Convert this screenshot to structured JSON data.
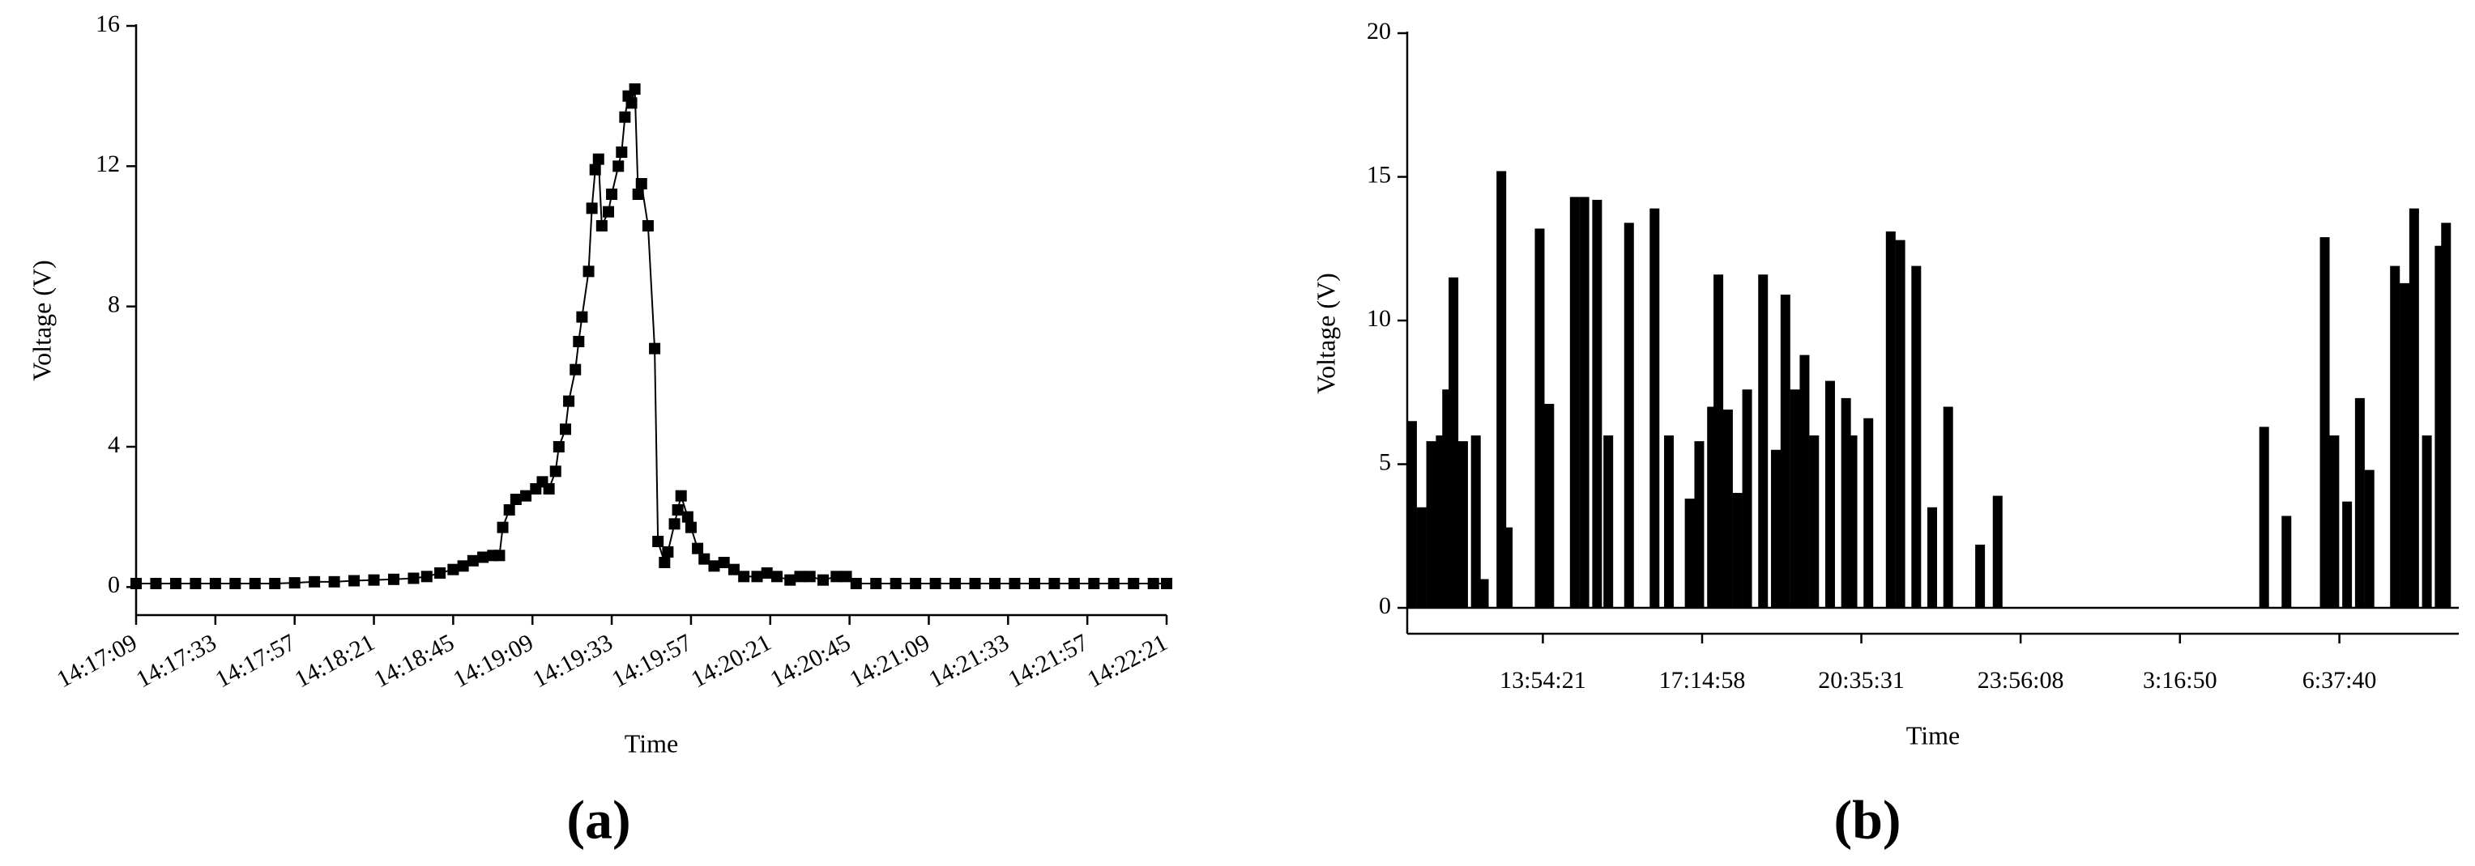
{
  "chart_data": [
    {
      "type": "line",
      "panel_label": "(a)",
      "xlabel": "Time",
      "ylabel": "Voltage (V)",
      "color": "#000000",
      "marker": "square",
      "x": [
        51429,
        51435,
        51441,
        51447,
        51453,
        51459,
        51465,
        51471,
        51477,
        51483,
        51489,
        51495,
        51501,
        51507,
        51513,
        51517,
        51521,
        51525,
        51528,
        51531,
        51534,
        51537,
        51539,
        51540,
        51542,
        51544,
        51547,
        51550,
        51552,
        51554,
        51556,
        51557,
        51559,
        51560,
        51562,
        51563,
        51564,
        51566,
        51567,
        51568,
        51569,
        51570,
        51572,
        51573,
        51575,
        51576,
        51577,
        51578,
        51579,
        51580,
        51581,
        51582,
        51584,
        51586,
        51587,
        51589,
        51590,
        51592,
        51593,
        51594,
        51596,
        51597,
        51599,
        51601,
        51604,
        51607,
        51610,
        51613,
        51617,
        51620,
        51623,
        51627,
        51630,
        51633,
        51637,
        51641,
        51644,
        51647,
        51653,
        51659,
        51665,
        51671,
        51677,
        51683,
        51689,
        51695,
        51701,
        51707,
        51713,
        51719,
        51725,
        51731,
        51737,
        51741
      ],
      "values": [
        0.1,
        0.1,
        0.1,
        0.1,
        0.1,
        0.1,
        0.1,
        0.1,
        0.12,
        0.15,
        0.15,
        0.18,
        0.2,
        0.22,
        0.25,
        0.3,
        0.4,
        0.5,
        0.6,
        0.75,
        0.85,
        0.9,
        0.9,
        1.7,
        2.2,
        2.5,
        2.6,
        2.8,
        3.0,
        2.8,
        3.3,
        4.0,
        4.5,
        5.3,
        6.2,
        7.0,
        7.7,
        9.0,
        10.8,
        11.9,
        12.2,
        10.3,
        10.7,
        11.2,
        12.0,
        12.4,
        13.4,
        14.0,
        13.8,
        14.2,
        11.2,
        11.5,
        10.3,
        6.8,
        1.3,
        0.7,
        1.0,
        1.8,
        2.2,
        2.6,
        2.0,
        1.7,
        1.1,
        0.8,
        0.6,
        0.7,
        0.5,
        0.3,
        0.3,
        0.4,
        0.3,
        0.2,
        0.3,
        0.3,
        0.2,
        0.3,
        0.3,
        0.1,
        0.1,
        0.1,
        0.1,
        0.1,
        0.1,
        0.1,
        0.1,
        0.1,
        0.1,
        0.1,
        0.1,
        0.1,
        0.1,
        0.1,
        0.1,
        0.1
      ],
      "xlim": [
        51429,
        51741
      ],
      "xticks": [
        {
          "value": 51429,
          "label": "14:17:09"
        },
        {
          "value": 51453,
          "label": "14:17:33"
        },
        {
          "value": 51477,
          "label": "14:17:57"
        },
        {
          "value": 51501,
          "label": "14:18:21"
        },
        {
          "value": 51525,
          "label": "14:18:45"
        },
        {
          "value": 51549,
          "label": "14:19:09"
        },
        {
          "value": 51573,
          "label": "14:19:33"
        },
        {
          "value": 51597,
          "label": "14:19:57"
        },
        {
          "value": 51621,
          "label": "14:20:21"
        },
        {
          "value": 51645,
          "label": "14:20:45"
        },
        {
          "value": 51669,
          "label": "14:21:09"
        },
        {
          "value": 51693,
          "label": "14:21:33"
        },
        {
          "value": 51717,
          "label": "14:21:57"
        },
        {
          "value": 51741,
          "label": "14:22:21"
        }
      ],
      "ylim": [
        -0.8,
        16
      ],
      "yticks": [
        0,
        4,
        8,
        12,
        16
      ]
    },
    {
      "type": "bar",
      "panel_label": "(b)",
      "xlabel": "Time",
      "ylabel": "Voltage (V)",
      "color": "#000000",
      "x": [
        40172,
        40895,
        41619,
        42343,
        42825,
        43307,
        44031,
        44996,
        45599,
        46925,
        47408,
        49820,
        50543,
        52473,
        53197,
        54161,
        55006,
        56573,
        58503,
        59588,
        61156,
        61880,
        62845,
        63327,
        64051,
        64774,
        65498,
        66704,
        67669,
        68392,
        69116,
        69839,
        70563,
        71769,
        72975,
        73457,
        74663,
        76352,
        77075,
        78281,
        79487,
        80693,
        83105,
        84432,
        104572,
        106261,
        109155,
        109879,
        110843,
        111808,
        112532,
        114461,
        115185,
        115909,
        116873,
        117838,
        118321
      ],
      "values": [
        6.5,
        3.5,
        5.8,
        6,
        7.6,
        11.5,
        5.8,
        6,
        1,
        15.2,
        2.8,
        13.2,
        7.1,
        14.3,
        14.3,
        14.2,
        6,
        13.4,
        13.9,
        6,
        3.8,
        5.8,
        7,
        11.6,
        6.9,
        4,
        7.6,
        11.6,
        5.5,
        10.9,
        7.6,
        8.8,
        6,
        7.9,
        7.3,
        6,
        6.6,
        13.1,
        12.8,
        11.9,
        3.5,
        7,
        2.2,
        3.9,
        6.3,
        3.2,
        12.9,
        6,
        3.7,
        7.3,
        4.8,
        11.9,
        11.3,
        13.9,
        6,
        12.6,
        13.4
      ],
      "xlim": [
        39810,
        119285
      ],
      "xticks": [
        {
          "value": 50061,
          "label": "13:54:21"
        },
        {
          "value": 62098,
          "label": "17:14:58"
        },
        {
          "value": 74131,
          "label": "20:35:31"
        },
        {
          "value": 86168,
          "label": "23:56:08"
        },
        {
          "value": 98210,
          "label": "3:16:50"
        },
        {
          "value": 110260,
          "label": "6:37:40"
        }
      ],
      "ylim": [
        -0.9,
        20
      ],
      "yticks": [
        0,
        5,
        10,
        15,
        20
      ]
    }
  ]
}
